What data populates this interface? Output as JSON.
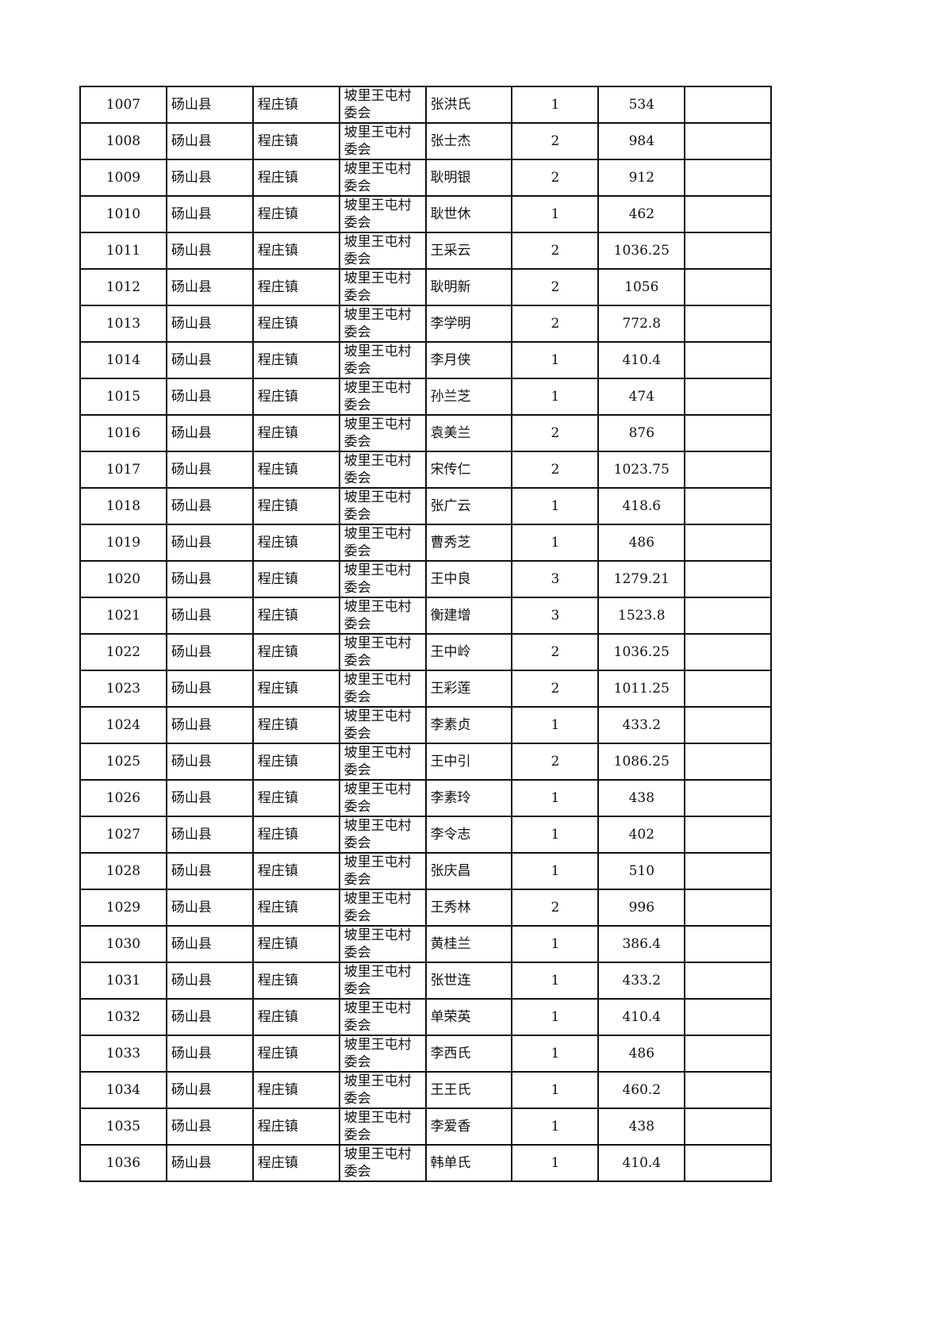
{
  "rows": [
    {
      "no": "1007",
      "county": "砀山县",
      "town": "程庄镇",
      "village": "坡里王屯村委会",
      "name": "张洪氏",
      "people": "1",
      "amount": "534",
      "remark": ""
    },
    {
      "no": "1008",
      "county": "砀山县",
      "town": "程庄镇",
      "village": "坡里王屯村委会",
      "name": "张士杰",
      "people": "2",
      "amount": "984",
      "remark": ""
    },
    {
      "no": "1009",
      "county": "砀山县",
      "town": "程庄镇",
      "village": "坡里王屯村委会",
      "name": "耿明银",
      "people": "2",
      "amount": "912",
      "remark": ""
    },
    {
      "no": "1010",
      "county": "砀山县",
      "town": "程庄镇",
      "village": "坡里王屯村委会",
      "name": "耿世休",
      "people": "1",
      "amount": "462",
      "remark": ""
    },
    {
      "no": "1011",
      "county": "砀山县",
      "town": "程庄镇",
      "village": "坡里王屯村委会",
      "name": "王采云",
      "people": "2",
      "amount": "1036.25",
      "remark": ""
    },
    {
      "no": "1012",
      "county": "砀山县",
      "town": "程庄镇",
      "village": "坡里王屯村委会",
      "name": "耿明新",
      "people": "2",
      "amount": "1056",
      "remark": ""
    },
    {
      "no": "1013",
      "county": "砀山县",
      "town": "程庄镇",
      "village": "坡里王屯村委会",
      "name": "李学明",
      "people": "2",
      "amount": "772.8",
      "remark": ""
    },
    {
      "no": "1014",
      "county": "砀山县",
      "town": "程庄镇",
      "village": "坡里王屯村委会",
      "name": "李月侠",
      "people": "1",
      "amount": "410.4",
      "remark": ""
    },
    {
      "no": "1015",
      "county": "砀山县",
      "town": "程庄镇",
      "village": "坡里王屯村委会",
      "name": "孙兰芝",
      "people": "1",
      "amount": "474",
      "remark": ""
    },
    {
      "no": "1016",
      "county": "砀山县",
      "town": "程庄镇",
      "village": "坡里王屯村委会",
      "name": "袁美兰",
      "people": "2",
      "amount": "876",
      "remark": ""
    },
    {
      "no": "1017",
      "county": "砀山县",
      "town": "程庄镇",
      "village": "坡里王屯村委会",
      "name": "宋传仁",
      "people": "2",
      "amount": "1023.75",
      "remark": ""
    },
    {
      "no": "1018",
      "county": "砀山县",
      "town": "程庄镇",
      "village": "坡里王屯村委会",
      "name": "张广云",
      "people": "1",
      "amount": "418.6",
      "remark": ""
    },
    {
      "no": "1019",
      "county": "砀山县",
      "town": "程庄镇",
      "village": "坡里王屯村委会",
      "name": "曹秀芝",
      "people": "1",
      "amount": "486",
      "remark": ""
    },
    {
      "no": "1020",
      "county": "砀山县",
      "town": "程庄镇",
      "village": "坡里王屯村委会",
      "name": "王中良",
      "people": "3",
      "amount": "1279.21",
      "remark": ""
    },
    {
      "no": "1021",
      "county": "砀山县",
      "town": "程庄镇",
      "village": "坡里王屯村委会",
      "name": "衡建增",
      "people": "3",
      "amount": "1523.8",
      "remark": ""
    },
    {
      "no": "1022",
      "county": "砀山县",
      "town": "程庄镇",
      "village": "坡里王屯村委会",
      "name": "王中岭",
      "people": "2",
      "amount": "1036.25",
      "remark": ""
    },
    {
      "no": "1023",
      "county": "砀山县",
      "town": "程庄镇",
      "village": "坡里王屯村委会",
      "name": "王彩莲",
      "people": "2",
      "amount": "1011.25",
      "remark": ""
    },
    {
      "no": "1024",
      "county": "砀山县",
      "town": "程庄镇",
      "village": "坡里王屯村委会",
      "name": "李素贞",
      "people": "1",
      "amount": "433.2",
      "remark": ""
    },
    {
      "no": "1025",
      "county": "砀山县",
      "town": "程庄镇",
      "village": "坡里王屯村委会",
      "name": "王中引",
      "people": "2",
      "amount": "1086.25",
      "remark": ""
    },
    {
      "no": "1026",
      "county": "砀山县",
      "town": "程庄镇",
      "village": "坡里王屯村委会",
      "name": "李素玲",
      "people": "1",
      "amount": "438",
      "remark": ""
    },
    {
      "no": "1027",
      "county": "砀山县",
      "town": "程庄镇",
      "village": "坡里王屯村委会",
      "name": "李令志",
      "people": "1",
      "amount": "402",
      "remark": ""
    },
    {
      "no": "1028",
      "county": "砀山县",
      "town": "程庄镇",
      "village": "坡里王屯村委会",
      "name": "张庆昌",
      "people": "1",
      "amount": "510",
      "remark": ""
    },
    {
      "no": "1029",
      "county": "砀山县",
      "town": "程庄镇",
      "village": "坡里王屯村委会",
      "name": "王秀林",
      "people": "2",
      "amount": "996",
      "remark": ""
    },
    {
      "no": "1030",
      "county": "砀山县",
      "town": "程庄镇",
      "village": "坡里王屯村委会",
      "name": "黄桂兰",
      "people": "1",
      "amount": "386.4",
      "remark": ""
    },
    {
      "no": "1031",
      "county": "砀山县",
      "town": "程庄镇",
      "village": "坡里王屯村委会",
      "name": "张世连",
      "people": "1",
      "amount": "433.2",
      "remark": ""
    },
    {
      "no": "1032",
      "county": "砀山县",
      "town": "程庄镇",
      "village": "坡里王屯村委会",
      "name": "单荣英",
      "people": "1",
      "amount": "410.4",
      "remark": ""
    },
    {
      "no": "1033",
      "county": "砀山县",
      "town": "程庄镇",
      "village": "坡里王屯村委会",
      "name": "李西氏",
      "people": "1",
      "amount": "486",
      "remark": ""
    },
    {
      "no": "1034",
      "county": "砀山县",
      "town": "程庄镇",
      "village": "坡里王屯村委会",
      "name": "王王氏",
      "people": "1",
      "amount": "460.2",
      "remark": ""
    },
    {
      "no": "1035",
      "county": "砀山县",
      "town": "程庄镇",
      "village": "坡里王屯村委会",
      "name": "李爱香",
      "people": "1",
      "amount": "438",
      "remark": ""
    },
    {
      "no": "1036",
      "county": "砀山县",
      "town": "程庄镇",
      "village": "坡里王屯村委会",
      "name": "韩单氏",
      "people": "1",
      "amount": "410.4",
      "remark": ""
    }
  ]
}
